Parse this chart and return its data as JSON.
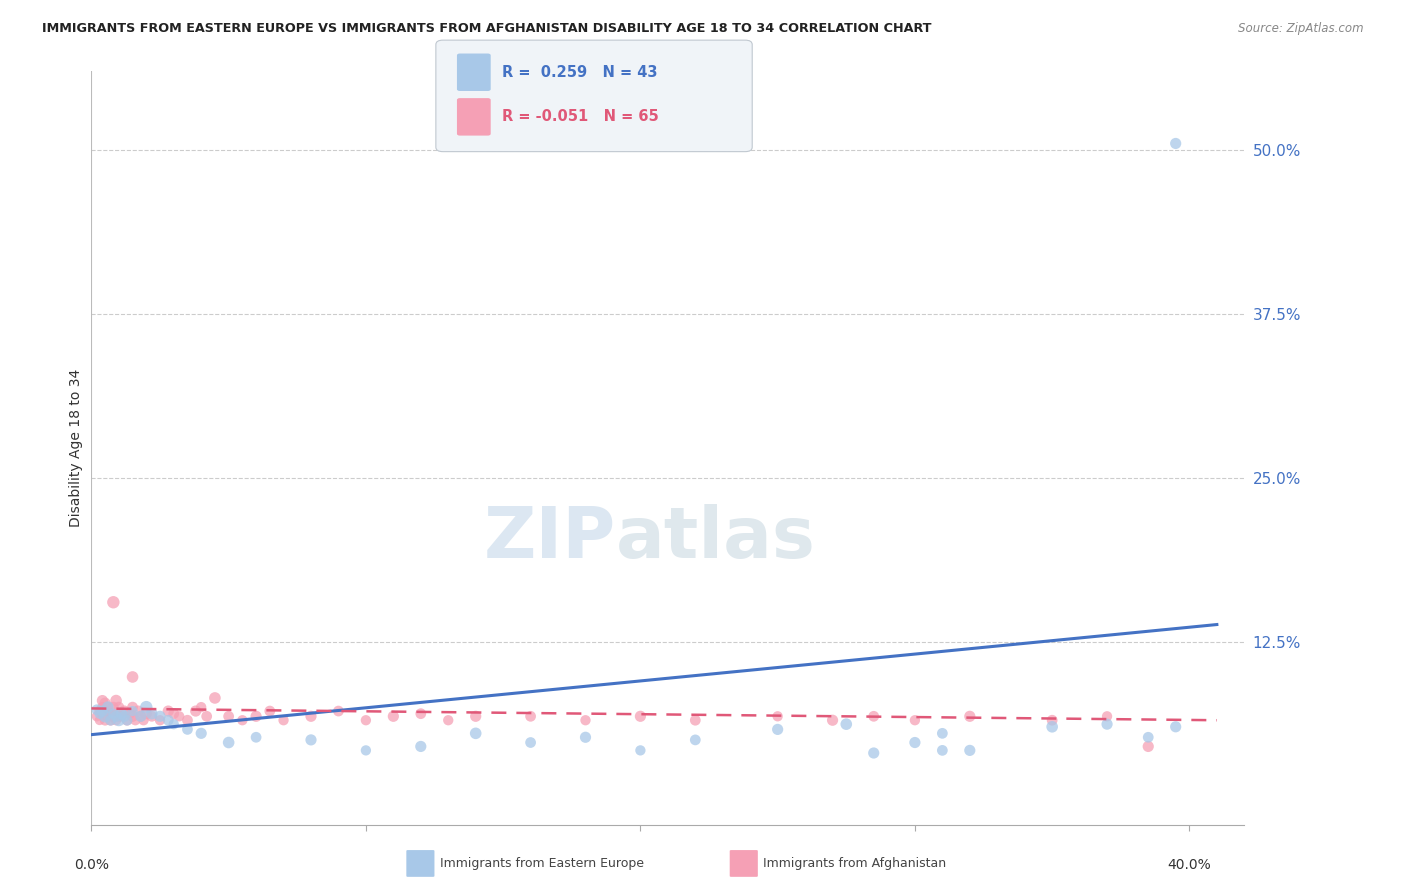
{
  "title": "IMMIGRANTS FROM EASTERN EUROPE VS IMMIGRANTS FROM AFGHANISTAN DISABILITY AGE 18 TO 34 CORRELATION CHART",
  "source": "Source: ZipAtlas.com",
  "ylabel": "Disability Age 18 to 34",
  "ytick_labels": [
    "12.5%",
    "25.0%",
    "37.5%",
    "50.0%"
  ],
  "ytick_values": [
    0.125,
    0.25,
    0.375,
    0.5
  ],
  "xmin": 0.0,
  "xmax": 0.42,
  "ymin": -0.015,
  "ymax": 0.56,
  "color_blue": "#a8c8e8",
  "color_pink": "#f5a0b5",
  "line_blue": "#4472c4",
  "line_pink": "#e05878",
  "line_pink_dash": "#e05878",
  "blue_x": [
    0.002,
    0.003,
    0.004,
    0.005,
    0.006,
    0.007,
    0.008,
    0.009,
    0.01,
    0.011,
    0.012,
    0.013,
    0.015,
    0.018,
    0.02,
    0.022,
    0.025,
    0.028,
    0.03,
    0.035,
    0.04,
    0.05,
    0.06,
    0.08,
    0.1,
    0.12,
    0.14,
    0.16,
    0.18,
    0.2,
    0.22,
    0.25,
    0.275,
    0.3,
    0.31,
    0.32,
    0.35,
    0.37,
    0.385,
    0.395,
    0.285,
    0.31,
    0.395
  ],
  "blue_y": [
    0.073,
    0.07,
    0.072,
    0.068,
    0.075,
    0.065,
    0.07,
    0.068,
    0.065,
    0.07,
    0.068,
    0.065,
    0.072,
    0.068,
    0.075,
    0.07,
    0.068,
    0.065,
    0.062,
    0.058,
    0.055,
    0.048,
    0.052,
    0.05,
    0.042,
    0.045,
    0.055,
    0.048,
    0.052,
    0.042,
    0.05,
    0.058,
    0.062,
    0.048,
    0.055,
    0.042,
    0.06,
    0.062,
    0.052,
    0.06,
    0.04,
    0.042,
    0.505
  ],
  "blue_sizes": [
    60,
    55,
    65,
    80,
    70,
    60,
    55,
    65,
    75,
    70,
    65,
    60,
    55,
    65,
    80,
    70,
    65,
    60,
    55,
    60,
    65,
    70,
    60,
    65,
    55,
    65,
    70,
    60,
    65,
    55,
    60,
    65,
    70,
    65,
    60,
    65,
    70,
    65,
    60,
    65,
    65,
    60,
    65
  ],
  "pink_x": [
    0.002,
    0.003,
    0.003,
    0.004,
    0.004,
    0.005,
    0.005,
    0.005,
    0.006,
    0.006,
    0.007,
    0.007,
    0.008,
    0.008,
    0.009,
    0.009,
    0.01,
    0.01,
    0.011,
    0.012,
    0.013,
    0.014,
    0.015,
    0.015,
    0.016,
    0.017,
    0.018,
    0.019,
    0.02,
    0.022,
    0.025,
    0.028,
    0.03,
    0.032,
    0.035,
    0.038,
    0.04,
    0.042,
    0.045,
    0.05,
    0.055,
    0.06,
    0.065,
    0.07,
    0.08,
    0.09,
    0.1,
    0.11,
    0.12,
    0.13,
    0.14,
    0.16,
    0.18,
    0.2,
    0.22,
    0.25,
    0.27,
    0.285,
    0.3,
    0.32,
    0.35,
    0.37,
    0.385,
    0.008,
    0.015
  ],
  "pink_y": [
    0.068,
    0.065,
    0.072,
    0.075,
    0.08,
    0.065,
    0.072,
    0.078,
    0.068,
    0.075,
    0.065,
    0.07,
    0.068,
    0.075,
    0.065,
    0.08,
    0.068,
    0.075,
    0.068,
    0.072,
    0.065,
    0.07,
    0.068,
    0.075,
    0.065,
    0.072,
    0.068,
    0.065,
    0.07,
    0.068,
    0.065,
    0.072,
    0.07,
    0.068,
    0.065,
    0.072,
    0.075,
    0.068,
    0.082,
    0.068,
    0.065,
    0.068,
    0.072,
    0.065,
    0.068,
    0.072,
    0.065,
    0.068,
    0.07,
    0.065,
    0.068,
    0.068,
    0.065,
    0.068,
    0.065,
    0.068,
    0.065,
    0.068,
    0.065,
    0.068,
    0.065,
    0.068,
    0.045,
    0.155,
    0.098
  ],
  "pink_sizes": [
    55,
    50,
    60,
    55,
    65,
    60,
    55,
    65,
    60,
    55,
    60,
    55,
    65,
    60,
    55,
    70,
    65,
    60,
    55,
    65,
    60,
    55,
    65,
    60,
    55,
    65,
    60,
    55,
    65,
    60,
    55,
    65,
    60,
    55,
    60,
    65,
    55,
    60,
    70,
    60,
    55,
    65,
    60,
    55,
    65,
    60,
    55,
    65,
    60,
    55,
    65,
    60,
    55,
    65,
    60,
    55,
    65,
    60,
    55,
    65,
    60,
    55,
    65,
    80,
    70
  ],
  "blue_line_x": [
    0.0,
    0.41
  ],
  "blue_line_y": [
    0.054,
    0.138
  ],
  "pink_line_x": [
    0.0,
    0.41
  ],
  "pink_line_y": [
    0.074,
    0.065
  ],
  "legend_r1_color": "#4472c4",
  "legend_r2_color": "#e05878",
  "watermark_zip_color": "#c8d8e8",
  "watermark_atlas_color": "#c8d8e8"
}
